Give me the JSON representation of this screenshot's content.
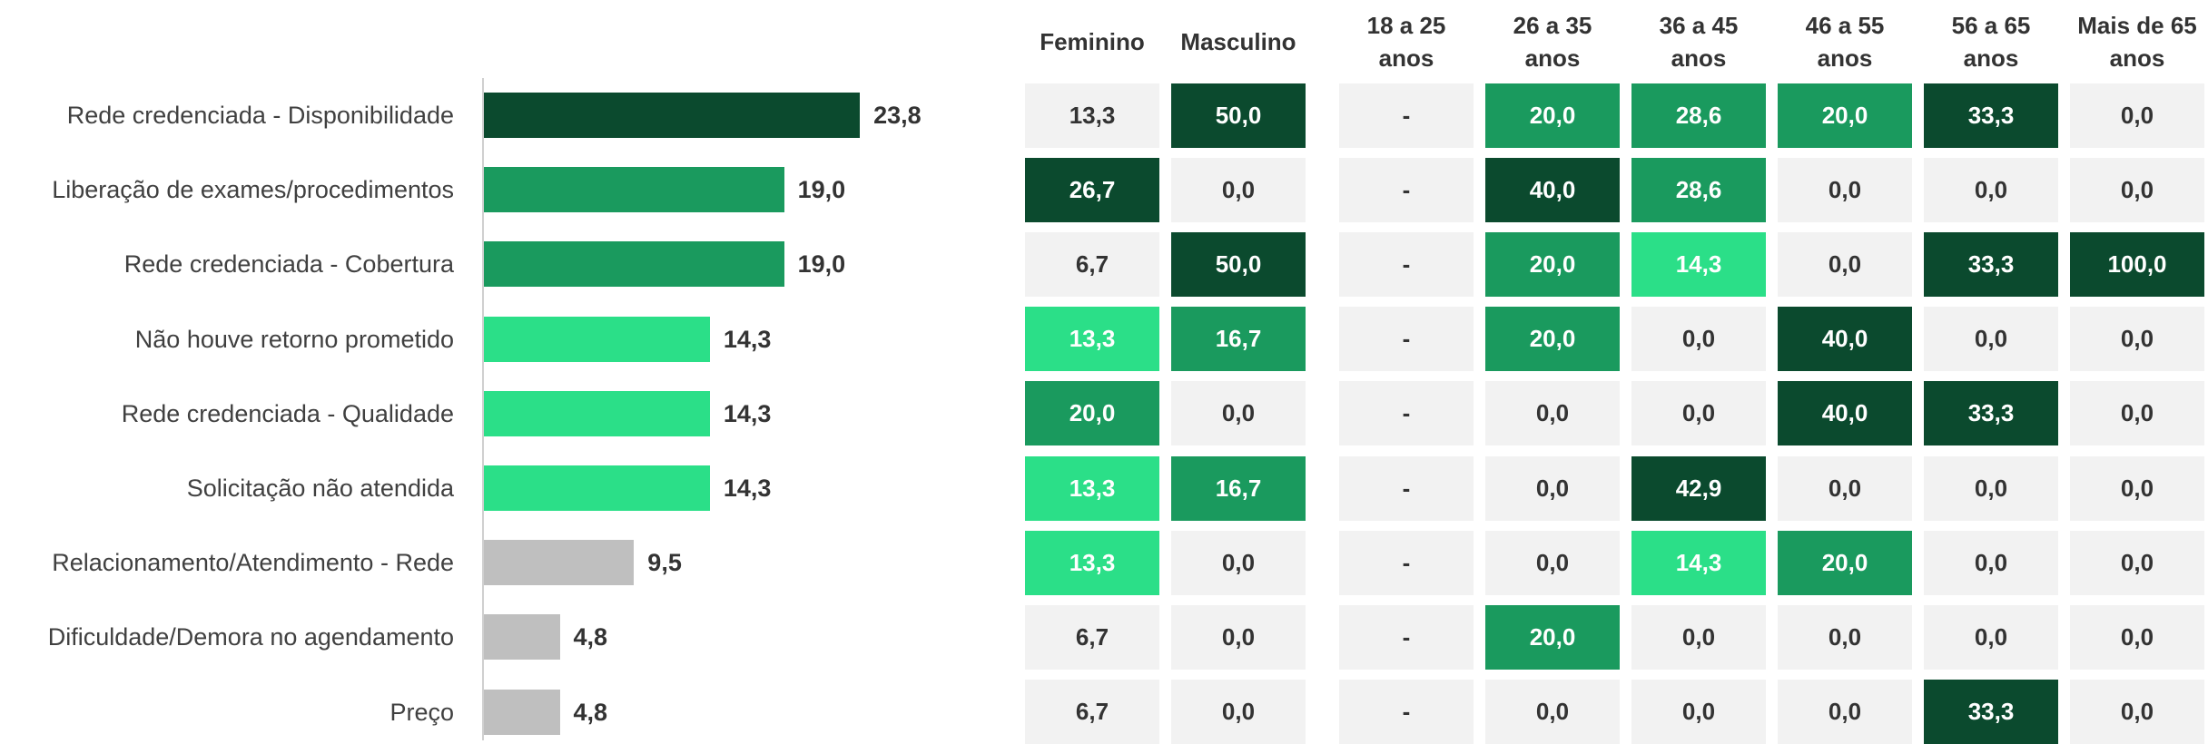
{
  "chart_data": {
    "type": "bar",
    "orientation": "horizontal",
    "categories": [
      "Rede credenciada - Disponibilidade",
      "Liberação de exames/procedimentos",
      "Rede credenciada - Cobertura",
      "Não houve retorno prometido",
      "Rede credenciada - Qualidade",
      "Solicitação não atendida",
      "Relacionamento/Atendimento - Rede",
      "Dificuldade/Demora no agendamento",
      "Preço"
    ],
    "values": [
      23.8,
      19.0,
      19.0,
      14.3,
      14.3,
      14.3,
      9.5,
      4.8,
      4.8
    ],
    "value_labels": [
      "23,8",
      "19,0",
      "19,0",
      "14,3",
      "14,3",
      "14,3",
      "9,5",
      "4,8",
      "4,8"
    ],
    "colors": [
      "#0b4a2e",
      "#1a9a5e",
      "#1a9a5e",
      "#2bdf88",
      "#2bdf88",
      "#2bdf88",
      "#bfbfbf",
      "#bfbfbf",
      "#bfbfbf"
    ]
  },
  "table": {
    "columns": [
      "Feminino",
      "Masculino",
      "18 a 25 anos",
      "26 a 35 anos",
      "36 a 45 anos",
      "46 a 55 anos",
      "56 a 65 anos",
      "Mais de 65 anos"
    ],
    "rows": [
      [
        "13,3",
        "50,0",
        "-",
        "20,0",
        "28,6",
        "20,0",
        "33,3",
        "0,0"
      ],
      [
        "26,7",
        "0,0",
        "-",
        "40,0",
        "28,6",
        "0,0",
        "0,0",
        "0,0"
      ],
      [
        "6,7",
        "50,0",
        "-",
        "20,0",
        "14,3",
        "0,0",
        "33,3",
        "100,0"
      ],
      [
        "13,3",
        "16,7",
        "-",
        "20,0",
        "0,0",
        "40,0",
        "0,0",
        "0,0"
      ],
      [
        "20,0",
        "0,0",
        "-",
        "0,0",
        "0,0",
        "40,0",
        "33,3",
        "0,0"
      ],
      [
        "13,3",
        "16,7",
        "-",
        "0,0",
        "42,9",
        "0,0",
        "0,0",
        "0,0"
      ],
      [
        "13,3",
        "0,0",
        "-",
        "0,0",
        "14,3",
        "20,0",
        "0,0",
        "0,0"
      ],
      [
        "6,7",
        "0,0",
        "-",
        "20,0",
        "0,0",
        "0,0",
        "0,0",
        "0,0"
      ],
      [
        "6,7",
        "0,0",
        "-",
        "0,0",
        "0,0",
        "0,0",
        "33,3",
        "0,0"
      ]
    ],
    "cell_colors": [
      [
        "#f2f2f2",
        "#0b4a2e",
        "#f2f2f2",
        "#1a9a5e",
        "#1a9a5e",
        "#1a9a5e",
        "#0b4a2e",
        "#f2f2f2"
      ],
      [
        "#0b4a2e",
        "#f2f2f2",
        "#f2f2f2",
        "#0b4a2e",
        "#1a9a5e",
        "#f2f2f2",
        "#f2f2f2",
        "#f2f2f2"
      ],
      [
        "#f2f2f2",
        "#0b4a2e",
        "#f2f2f2",
        "#1a9a5e",
        "#2bdf88",
        "#f2f2f2",
        "#0b4a2e",
        "#0b4a2e"
      ],
      [
        "#2bdf88",
        "#1a9a5e",
        "#f2f2f2",
        "#1a9a5e",
        "#f2f2f2",
        "#0b4a2e",
        "#f2f2f2",
        "#f2f2f2"
      ],
      [
        "#1a9a5e",
        "#f2f2f2",
        "#f2f2f2",
        "#f2f2f2",
        "#f2f2f2",
        "#0b4a2e",
        "#0b4a2e",
        "#f2f2f2"
      ],
      [
        "#2bdf88",
        "#1a9a5e",
        "#f2f2f2",
        "#f2f2f2",
        "#0b4a2e",
        "#f2f2f2",
        "#f2f2f2",
        "#f2f2f2"
      ],
      [
        "#2bdf88",
        "#f2f2f2",
        "#f2f2f2",
        "#f2f2f2",
        "#2bdf88",
        "#1a9a5e",
        "#f2f2f2",
        "#f2f2f2"
      ],
      [
        "#f2f2f2",
        "#f2f2f2",
        "#f2f2f2",
        "#1a9a5e",
        "#f2f2f2",
        "#f2f2f2",
        "#f2f2f2",
        "#f2f2f2"
      ],
      [
        "#f2f2f2",
        "#f2f2f2",
        "#f2f2f2",
        "#f2f2f2",
        "#f2f2f2",
        "#f2f2f2",
        "#0b4a2e",
        "#f2f2f2"
      ]
    ]
  }
}
